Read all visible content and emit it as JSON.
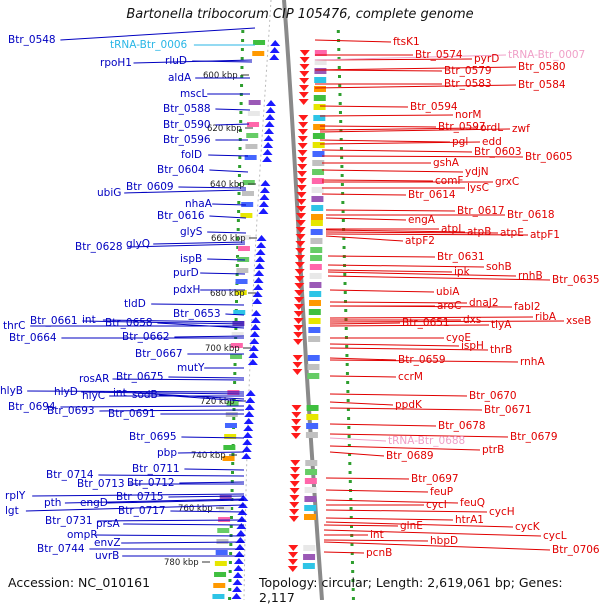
{
  "title": "Bartonella tribocorum CIP 105476, complete genome",
  "footer": {
    "accession": "Accession: NC_010161",
    "topology": "Topology: circular; Length: 2,619,061 bp; Genes: 2,117"
  },
  "colors": {
    "left_label": "#0000c0",
    "right_label": "#e00000",
    "trna_left": "#29b6e6",
    "trna_right": "#f0a0c8",
    "backbone": "#808080",
    "ticks": "#2e9e2e",
    "scale_text": "#222222"
  },
  "scale_labels": [
    "600 kbp",
    "620 kbp",
    "640 kbp",
    "660 kbp",
    "680 kbp",
    "700 kbp",
    "720 kbp",
    "740 kbp",
    "760 kbp",
    "780 kbp"
  ],
  "left_labels": [
    "Btr_0548",
    "tRNA-Btr_0006",
    "rpoH1",
    "rluD",
    "aldA",
    "mscL",
    "Btr_0588",
    "Btr_0590",
    "Btr_0596",
    "folD",
    "Btr_0604",
    "ubiG",
    "Btr_0609",
    "nhaA",
    "Btr_0616",
    "glyS",
    "Btr_0628",
    "glyQ",
    "ispB",
    "purD",
    "pdxH",
    "tldD",
    "Btr_0653",
    "thrC",
    "Btr_0661",
    "int",
    "Btr_0658",
    "Btr_0664",
    "Btr_0662",
    "Btr_0667",
    "mutY",
    "rosAR",
    "Btr_0675",
    "hlyB",
    "hlyD",
    "hlyC",
    "int",
    "sodB",
    "Btr_0694",
    "Btr_0693",
    "Btr_0691",
    "Btr_0695",
    "pbp",
    "Btr_0711",
    "Btr_0714",
    "Btr_0713",
    "Btr_0712",
    "rplY",
    "pth",
    "engD",
    "Btr_0715",
    "lgt",
    "Btr_0717",
    "Btr_0731",
    "prsA",
    "ompR",
    "envZ",
    "Btr_0744",
    "uvrB"
  ],
  "right_labels": [
    "ftsK1",
    "Btr_0574",
    "pyrD",
    "tRNA-Btr_0007",
    "Btr_0579",
    "Btr_0580",
    "Btr_0583",
    "Btr_0584",
    "Btr_0594",
    "norM",
    "Btr_0597",
    "ordL",
    "zwf",
    "pgl",
    "edd",
    "Btr_0603",
    "Btr_0605",
    "gshA",
    "ydjN",
    "comF",
    "grxC",
    "lysC",
    "Btr_0614",
    "Btr_0617",
    "engA",
    "Btr_0618",
    "atpI",
    "atpB",
    "atpE",
    "atpF1",
    "atpF2",
    "Btr_0631",
    "sohB",
    "ipk",
    "rnhB",
    "Btr_0635",
    "ubiA",
    "aroC",
    "dnaJ2",
    "fabI2",
    "dxs",
    "ribA",
    "xseB",
    "Btr_0651",
    "tlyA",
    "cyoE",
    "ispH",
    "thrB",
    "Btr_0659",
    "rnhA",
    "ccrM",
    "Btr_0670",
    "ppdK",
    "Btr_0671",
    "Btr_0678",
    "Btr_0679",
    "tRNA-Btr_0688",
    "ptrB",
    "Btr_0689",
    "Btr_0697",
    "feuP",
    "feuQ",
    "cycI",
    "cycH",
    "htrA1",
    "cycK",
    "glnE",
    "hbpD",
    "int",
    "cycL",
    "Btr_0706",
    "pcnB"
  ]
}
